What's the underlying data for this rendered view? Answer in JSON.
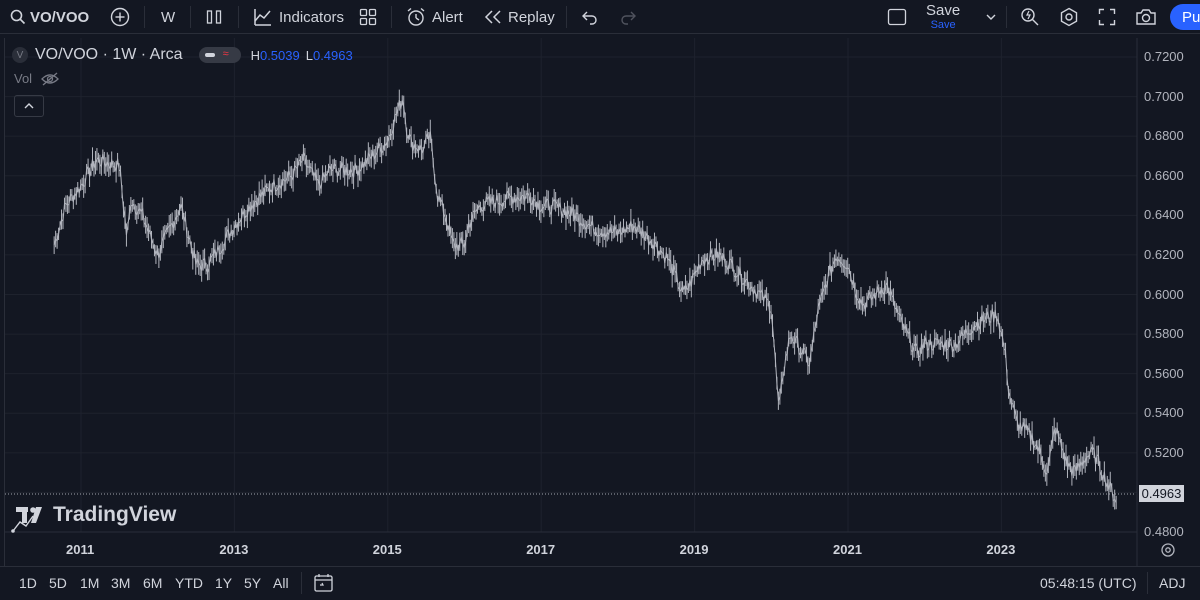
{
  "toolbar": {
    "symbol": "VO/VOO",
    "interval": "W",
    "indicators_label": "Indicators",
    "alert_label": "Alert",
    "replay_label": "Replay",
    "save_label": "Save",
    "save_sublabel": "Save",
    "publish_label": "Pu",
    "icons": [
      "search-icon",
      "add-symbol-icon",
      "bar-style-icon",
      "indicators-icon",
      "layout-icon",
      "alert-icon",
      "replay-icon",
      "undo-icon",
      "redo-icon",
      "layout-square-icon",
      "chevron-down-icon",
      "quick-search-icon",
      "settings-icon",
      "fullscreen-icon",
      "camera-icon"
    ]
  },
  "legend": {
    "title": "VO/VOO · 1W · Arca",
    "badge": "V",
    "high_label": "H",
    "high_value": "0.5039",
    "low_label": "L",
    "low_value": "0.4963",
    "volume_label": "Vol"
  },
  "chart_data": {
    "type": "line",
    "title": "VO/VOO · 1W · Arca",
    "x_tick_labels": [
      "2011",
      "2013",
      "2015",
      "2017",
      "2019",
      "2021",
      "2023"
    ],
    "y_tick_labels": [
      "0.7200",
      "0.7000",
      "0.6800",
      "0.6600",
      "0.6400",
      "0.6200",
      "0.6000",
      "0.5800",
      "0.5600",
      "0.5400",
      "0.5200",
      "0.5000",
      "0.4800"
    ],
    "ylim": [
      0.48,
      0.72
    ],
    "xlim": [
      2010.3,
      2024.7
    ],
    "grid": true,
    "last_price": "0.4963",
    "series": [
      {
        "x": [
          2010.65,
          2010.8,
          2011.0,
          2011.2,
          2011.5,
          2011.6,
          2011.65,
          2011.8,
          2012.0,
          2012.3,
          2012.5,
          2012.65,
          2012.8,
          2013.0,
          2013.2,
          2013.5,
          2013.75,
          2013.9,
          2014.1,
          2014.25,
          2014.4,
          2014.6,
          2014.8,
          2015.0,
          2015.1,
          2015.2,
          2015.24,
          2015.3,
          2015.45,
          2015.55,
          2015.65,
          2015.75,
          2015.85,
          2016.0,
          2016.05,
          2016.2,
          2016.4,
          2016.6,
          2016.85,
          2017.0,
          2017.2,
          2017.45,
          2017.7,
          2018.0,
          2018.2,
          2018.45,
          2018.65,
          2018.85,
          2018.95,
          2019.1,
          2019.3,
          2019.45,
          2019.65,
          2019.85,
          2020.0,
          2020.1,
          2020.15,
          2020.25,
          2020.5,
          2020.6,
          2020.75,
          2020.85,
          2021.0,
          2021.1,
          2021.2,
          2021.3,
          2021.5,
          2021.7,
          2021.9,
          2022.0,
          2022.2,
          2022.4,
          2022.65,
          2022.8,
          2022.95,
          2023.05,
          2023.1,
          2023.2,
          2023.4,
          2023.5,
          2023.6,
          2023.7,
          2023.85,
          2023.95,
          2024.1,
          2024.2,
          2024.3,
          2024.4,
          2024.5
        ],
        "values": [
          0.625,
          0.645,
          0.655,
          0.668,
          0.665,
          0.628,
          0.648,
          0.64,
          0.62,
          0.645,
          0.615,
          0.615,
          0.623,
          0.635,
          0.645,
          0.655,
          0.66,
          0.668,
          0.655,
          0.663,
          0.663,
          0.663,
          0.67,
          0.678,
          0.69,
          0.7,
          0.685,
          0.677,
          0.673,
          0.68,
          0.65,
          0.64,
          0.625,
          0.625,
          0.635,
          0.645,
          0.647,
          0.649,
          0.65,
          0.645,
          0.644,
          0.64,
          0.633,
          0.631,
          0.635,
          0.627,
          0.618,
          0.6,
          0.606,
          0.618,
          0.62,
          0.616,
          0.608,
          0.6,
          0.594,
          0.54,
          0.56,
          0.58,
          0.565,
          0.59,
          0.61,
          0.62,
          0.615,
          0.602,
          0.595,
          0.598,
          0.605,
          0.585,
          0.57,
          0.575,
          0.575,
          0.575,
          0.585,
          0.588,
          0.59,
          0.57,
          0.55,
          0.535,
          0.528,
          0.52,
          0.51,
          0.533,
          0.515,
          0.51,
          0.518,
          0.52,
          0.512,
          0.503,
          0.4963
        ]
      }
    ]
  },
  "timeframes": [
    "1D",
    "5D",
    "1M",
    "3M",
    "6M",
    "YTD",
    "1Y",
    "5Y",
    "All"
  ],
  "statusbar": {
    "clock": "05:48:15 (UTC)",
    "adj": "ADJ"
  },
  "branding": {
    "logo_text": "TradingView"
  },
  "colors": {
    "background": "#131722",
    "line": "#b2b5be",
    "accent": "#2962ff",
    "grid": "#1e222d"
  }
}
